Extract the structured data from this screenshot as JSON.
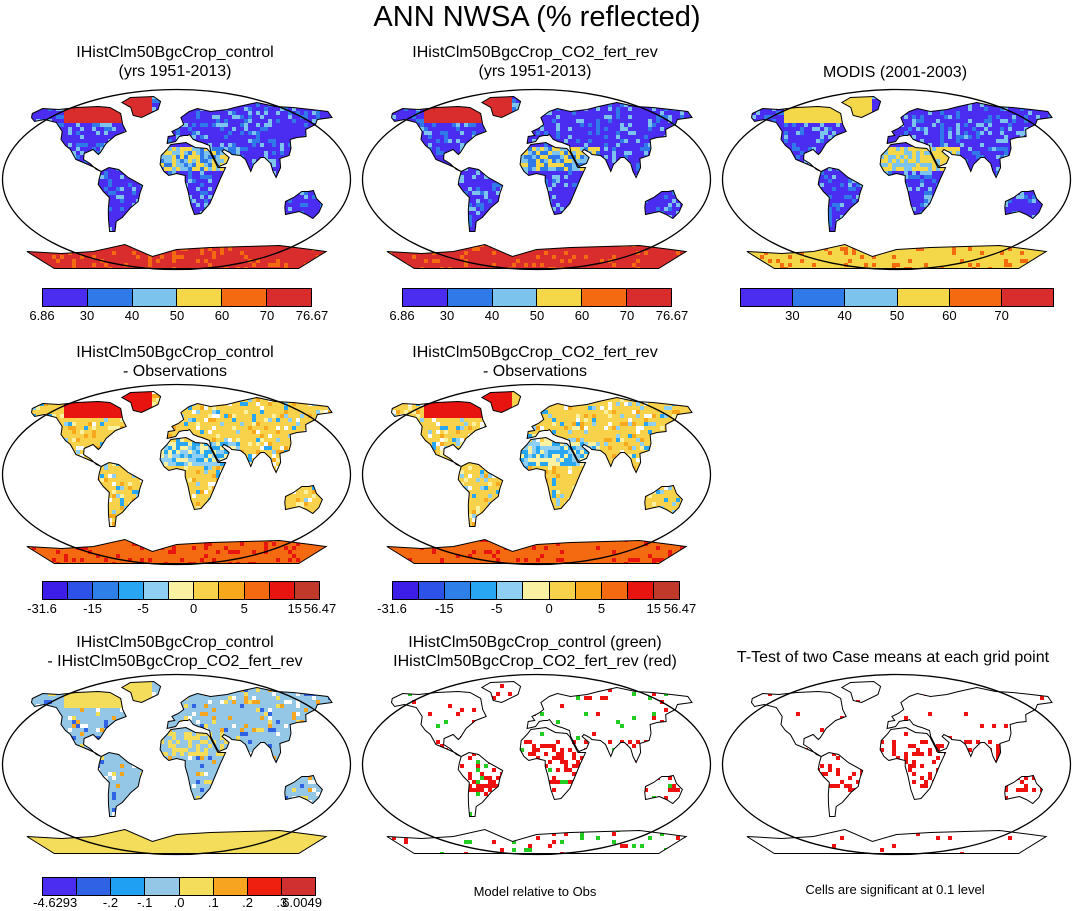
{
  "title": "ANN NWSA (% reflected)",
  "panels": [
    {
      "id": "p1",
      "line1": "IHistClm50BgcCrop_control",
      "line2": "(yrs 1951-2013)",
      "scheme": "abs"
    },
    {
      "id": "p2",
      "line1": "IHistClm50BgcCrop_CO2_fert_rev",
      "line2": "(yrs 1951-2013)",
      "scheme": "abs"
    },
    {
      "id": "p3",
      "line1": "MODIS (2001-2003)",
      "line2": "",
      "scheme": "obs"
    },
    {
      "id": "p4",
      "line1": "IHistClm50BgcCrop_control",
      "line2": "- Observations",
      "scheme": "bias"
    },
    {
      "id": "p5",
      "line1": "IHistClm50BgcCrop_CO2_fert_rev",
      "line2": "- Observations",
      "scheme": "bias"
    },
    {
      "id": "p6",
      "line1": "IHistClm50BgcCrop_control",
      "line2": "- IHistClm50BgcCrop_CO2_fert_rev",
      "scheme": "diff"
    },
    {
      "id": "p7",
      "line1": "IHistClm50BgcCrop_control (green)",
      "line2": "IHistClm50BgcCrop_CO2_fert_rev (red)",
      "scheme": "sig2"
    },
    {
      "id": "p8",
      "line1": "T-Test of two Case means at each grid point",
      "line2": "",
      "scheme": "sig1"
    }
  ],
  "colorbars": {
    "abs": {
      "colors": [
        "#4a2df0",
        "#2f79e8",
        "#7cc3ee",
        "#f5d74a",
        "#f46a10",
        "#d92d2d"
      ],
      "labels": [
        "6.86",
        "30",
        "40",
        "50",
        "60",
        "70",
        "76.67"
      ]
    },
    "obs": {
      "colors": [
        "#4a2df0",
        "#2f79e8",
        "#7cc3ee",
        "#f5d74a",
        "#f46a10",
        "#d92d2d"
      ],
      "labels": [
        "30",
        "40",
        "50",
        "60",
        "70"
      ]
    },
    "bias": {
      "colors": [
        "#3c1ee8",
        "#2c52e8",
        "#2f7fe8",
        "#29a6f2",
        "#8fcff3",
        "#fbf1a3",
        "#f8d24a",
        "#f8a81d",
        "#f46a10",
        "#e8140f",
        "#c0392b"
      ],
      "labels": [
        "-31.6",
        "-15",
        "-5",
        "0",
        "5",
        "15",
        "56.47"
      ]
    },
    "diff": {
      "colors": [
        "#4a2df0",
        "#2f62e4",
        "#20a0f2",
        "#94c7e6",
        "#f5dd5c",
        "#f7a520",
        "#f02010",
        "#d03030"
      ],
      "labels": [
        "-4.6293",
        "-.2",
        "-.1",
        ".0",
        ".1",
        ".2",
        ".3",
        "6.0049"
      ]
    }
  },
  "notes": {
    "model_relative": "Model relative to Obs",
    "significance": "Cells are significant at 0.1 level"
  }
}
